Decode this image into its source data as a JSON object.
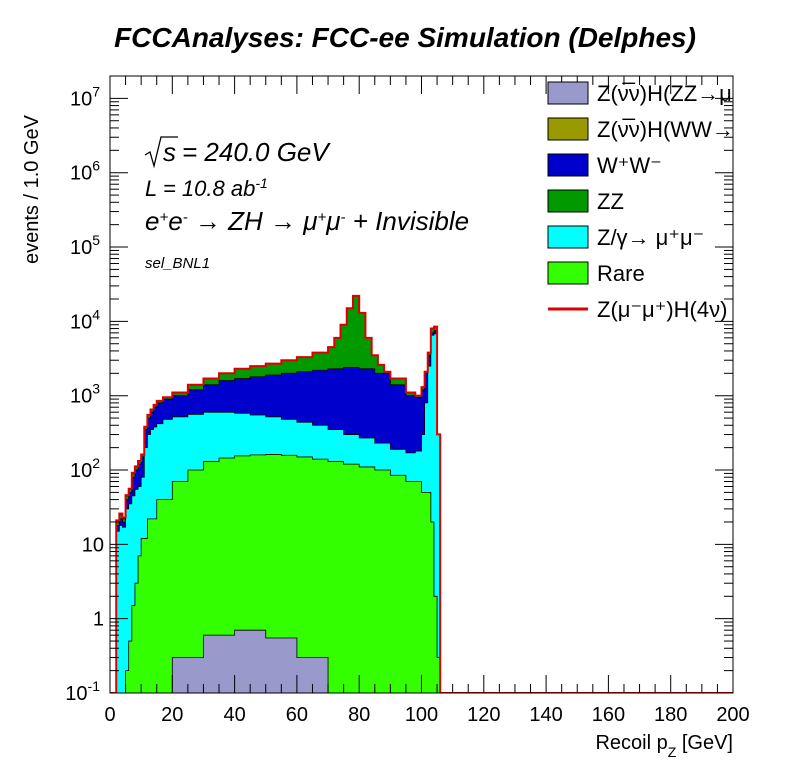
{
  "chart_data": {
    "type": "histogram",
    "title": "FCCAnalyses: FCC-ee Simulation (Delphes)",
    "xlabel": "Recoil p_{Z} [GeV]",
    "ylabel": "events / 1.0 GeV",
    "xlim": [
      0,
      200
    ],
    "ylim": [
      0.1,
      20000000
    ],
    "log_y": true,
    "x_ticks": [
      0,
      20,
      40,
      60,
      80,
      100,
      120,
      140,
      160,
      180,
      200
    ],
    "y_ticks": [
      {
        "value": 0.1,
        "label": "10^{-1}"
      },
      {
        "value": 1,
        "label": "1"
      },
      {
        "value": 10,
        "label": "10"
      },
      {
        "value": 100,
        "label": "10^{2}"
      },
      {
        "value": 1000,
        "label": "10^{3}"
      },
      {
        "value": 10000,
        "label": "10^{4}"
      },
      {
        "value": 100000,
        "label": "10^{5}"
      },
      {
        "value": 1000000,
        "label": "10^{6}"
      },
      {
        "value": 10000000,
        "label": "10^{7}"
      }
    ],
    "annotations": {
      "sqrt_s": "= 240.0 GeV",
      "lumi": "L = 10.8 ab^{-1}",
      "process": "e^{+}e^{-} → ZH → μ^{+}μ^{-} + Invisible",
      "selection": "sel_BNL1"
    },
    "stack_order_bottom_to_top": [
      "Z(νν̄)H(ZZ)",
      "Rare",
      "Z/γ",
      "W+W-",
      "ZZ",
      "Z(νν̄)H(WW)"
    ],
    "series": [
      {
        "name": "Z(ν̅ν)H(ZZ→μ⁺μ⁻ν⁺ν⁻)",
        "color": "#9999cc",
        "role": "stack",
        "edge_x": [
          0,
          20,
          30,
          40,
          50,
          60,
          70
        ],
        "cum_y": [
          0.1,
          0.3,
          0.6,
          0.7,
          0.55,
          0.3,
          0.1
        ]
      },
      {
        "name": "Rare",
        "color": "#33ff00",
        "role": "stack",
        "edge_x": [
          0,
          4,
          5,
          6,
          7,
          8,
          9,
          10,
          12,
          15,
          20,
          25,
          30,
          35,
          40,
          45,
          50,
          55,
          60,
          65,
          70,
          75,
          80,
          85,
          90,
          95,
          100,
          103,
          104,
          105,
          106
        ],
        "cum_y": [
          0.1,
          0.1,
          0.2,
          0.5,
          1.5,
          3,
          7,
          12,
          22,
          40,
          70,
          100,
          130,
          145,
          155,
          160,
          162,
          158,
          150,
          140,
          130,
          120,
          110,
          100,
          85,
          70,
          50,
          20,
          2,
          0.3,
          0.1
        ]
      },
      {
        "name": "Z/γ→ μ⁺μ⁻",
        "color": "#00ffff",
        "role": "stack",
        "edge_x": [
          0,
          2,
          3,
          4,
          5,
          6,
          7,
          8,
          9,
          10,
          11,
          12,
          13,
          14,
          15,
          17,
          20,
          25,
          30,
          35,
          40,
          45,
          50,
          55,
          60,
          65,
          70,
          75,
          80,
          85,
          90,
          95,
          98,
          100,
          101,
          102,
          103,
          104,
          105,
          106
        ],
        "cum_y": [
          0.1,
          15,
          18,
          17,
          30,
          35,
          45,
          55,
          60,
          80,
          200,
          300,
          350,
          380,
          420,
          480,
          520,
          560,
          600,
          600,
          580,
          550,
          520,
          480,
          440,
          400,
          350,
          300,
          270,
          230,
          190,
          170,
          180,
          300,
          800,
          2500,
          6500,
          6800,
          300,
          0.1
        ]
      },
      {
        "name": "W⁺W⁻",
        "color": "#0000cc",
        "role": "stack",
        "edge_x": [
          0,
          2,
          3,
          4,
          5,
          6,
          7,
          8,
          9,
          10,
          11,
          12,
          13,
          14,
          15,
          17,
          20,
          25,
          30,
          35,
          40,
          45,
          50,
          55,
          60,
          65,
          70,
          75,
          80,
          85,
          90,
          95,
          98,
          100,
          101,
          102,
          103,
          104,
          105,
          106
        ],
        "cum_y": [
          0.1,
          18,
          22,
          20,
          40,
          50,
          80,
          100,
          120,
          150,
          350,
          500,
          600,
          700,
          800,
          900,
          1000,
          1200,
          1400,
          1600,
          1700,
          1800,
          1900,
          2000,
          2100,
          2200,
          2300,
          2400,
          2300,
          2000,
          1400,
          1000,
          950,
          1200,
          2000,
          3500,
          7000,
          7500,
          300,
          0.1
        ]
      },
      {
        "name": "ZZ",
        "color": "#009900",
        "role": "stack",
        "edge_x": [
          0,
          2,
          3,
          4,
          5,
          6,
          7,
          8,
          9,
          10,
          11,
          12,
          13,
          14,
          15,
          17,
          20,
          25,
          30,
          35,
          40,
          45,
          50,
          55,
          60,
          65,
          70,
          72,
          74,
          76,
          78,
          80,
          82,
          84,
          86,
          88,
          90,
          95,
          98,
          100,
          101,
          102,
          103,
          104,
          105,
          106
        ],
        "cum_y": [
          0.1,
          20,
          25,
          22,
          45,
          55,
          90,
          110,
          130,
          160,
          380,
          550,
          650,
          750,
          850,
          950,
          1100,
          1400,
          1700,
          2000,
          2300,
          2500,
          2700,
          3000,
          3300,
          3800,
          4500,
          6000,
          9000,
          15000,
          22000,
          13000,
          6000,
          3500,
          2600,
          2100,
          1700,
          1100,
          1000,
          1300,
          2100,
          3800,
          8000,
          8500,
          300,
          0.1
        ]
      },
      {
        "name": "Z(ν̅ν)H(WW→μ⁺νμ⁻ν)",
        "color": "#999900",
        "role": "stack",
        "edge_x": [],
        "cum_y": []
      },
      {
        "name": "Z(μ⁻μ⁺)H(4ν)",
        "color": "#dd0000",
        "role": "line",
        "edge_x": [
          0,
          2,
          3,
          4,
          5,
          6,
          7,
          8,
          9,
          10,
          11,
          12,
          13,
          14,
          15,
          17,
          20,
          25,
          30,
          35,
          40,
          45,
          50,
          55,
          60,
          65,
          70,
          72,
          74,
          76,
          78,
          80,
          82,
          84,
          86,
          88,
          90,
          95,
          98,
          100,
          101,
          102,
          103,
          104,
          105,
          106,
          200
        ],
        "y": [
          0.1,
          21,
          26,
          23,
          46,
          56,
          92,
          112,
          132,
          162,
          382,
          552,
          652,
          752,
          852,
          952,
          1102,
          1402,
          1702,
          2002,
          2302,
          2502,
          2702,
          3002,
          3302,
          3802,
          4502,
          6002,
          9002,
          15002,
          22002,
          13002,
          6002,
          3502,
          2602,
          2102,
          1702,
          1102,
          1002,
          1302,
          2102,
          3802,
          8002,
          8502,
          302,
          0.1,
          0.1
        ]
      }
    ],
    "legend": {
      "placement": "top-right",
      "entries": [
        {
          "text": "Z(ν̅ν)H(ZZ→μ⁺μ⁻ν⁺ν⁻)",
          "color": "#9999cc",
          "style": "box"
        },
        {
          "text": "Z(ν̅ν)H(WW→μ⁺νμ⁻ν)",
          "color": "#999900",
          "style": "box"
        },
        {
          "text": "W⁺W⁻",
          "color": "#0000cc",
          "style": "box"
        },
        {
          "text": "ZZ",
          "color": "#009900",
          "style": "box"
        },
        {
          "text": "Z/γ→ μ⁺μ⁻",
          "color": "#00ffff",
          "style": "box"
        },
        {
          "text": "Rare",
          "color": "#33ff00",
          "style": "box"
        },
        {
          "text": "Z(μ⁻μ⁺)H(4ν)",
          "color": "#dd0000",
          "style": "line"
        }
      ]
    }
  }
}
